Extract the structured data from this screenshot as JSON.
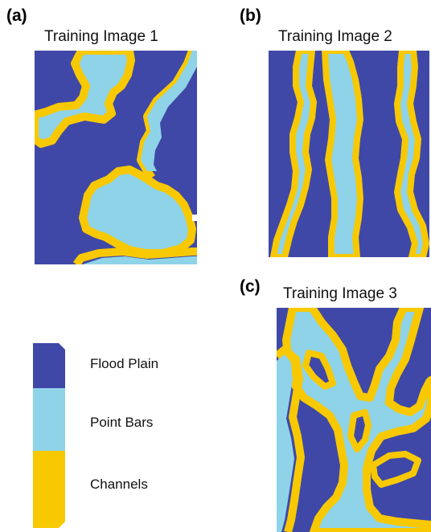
{
  "panels": [
    {
      "letter": "(a)",
      "title": "Training Image 1"
    },
    {
      "letter": "(b)",
      "title": "Training Image 2"
    },
    {
      "letter": "(c)",
      "title": "Training Image 3"
    }
  ],
  "legend": {
    "items": [
      {
        "label": "Flood Plain",
        "color": "#3f48a7"
      },
      {
        "label": "Point Bars",
        "color": "#8fd3e8"
      },
      {
        "label": "Channels",
        "color": "#f8c900"
      }
    ]
  },
  "colors": {
    "flood_plain": "#3f48a7",
    "point_bars": "#8fd3e8",
    "channels": "#f8c900"
  }
}
